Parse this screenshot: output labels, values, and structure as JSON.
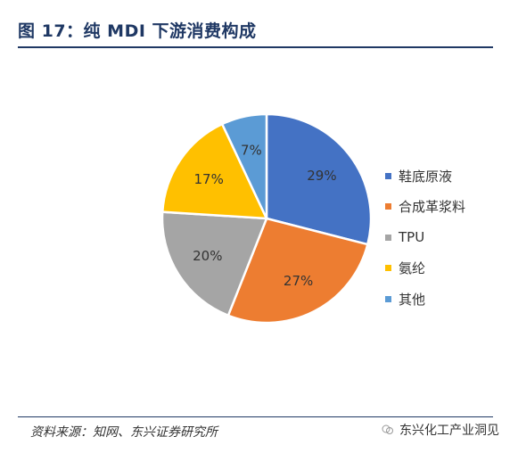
{
  "title": "图 17：纯 MDI 下游消费构成",
  "source": "资料来源：知网、东兴证券研究所",
  "brand": "东兴化工产业洞见",
  "chart_data": {
    "type": "pie",
    "categories": [
      "鞋底原液",
      "合成革浆料",
      "TPU",
      "氨纶",
      "其他"
    ],
    "values": [
      29,
      27,
      20,
      17,
      7
    ],
    "labels": [
      "29%",
      "27%",
      "20%",
      "17%",
      "7%"
    ],
    "colors": [
      "#4472c4",
      "#ed7d31",
      "#a5a5a5",
      "#ffc000",
      "#5b9bd5"
    ],
    "legend_position": "right"
  }
}
